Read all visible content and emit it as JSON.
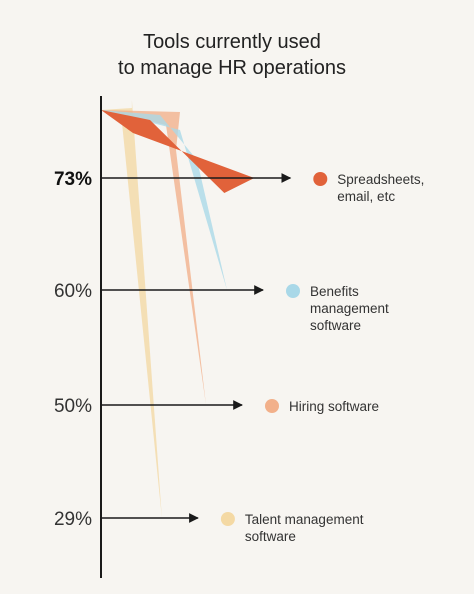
{
  "chart_data": {
    "type": "area",
    "title": "Tools currently used to manage HR operations",
    "title_lines": [
      "Tools currently used",
      "to manage HR operations"
    ],
    "series": [
      {
        "name": "Spreadsheets, email, etc",
        "legend_lines": [
          "Spreadsheets,",
          "email, etc"
        ],
        "value": 73,
        "label": "73%",
        "color": "#e1623a",
        "highlight": true
      },
      {
        "name": "Benefits management software",
        "legend_lines": [
          "Benefits",
          "management",
          "software"
        ],
        "value": 60,
        "label": "60%",
        "color": "#a9d8e8",
        "highlight": false
      },
      {
        "name": "Hiring software",
        "legend_lines": [
          "Hiring software"
        ],
        "value": 50,
        "label": "50%",
        "color": "#f2b08a",
        "highlight": false
      },
      {
        "name": "Talent management software",
        "legend_lines": [
          "Talent management",
          "software"
        ],
        "value": 29,
        "label": "29%",
        "color": "#f4d9a4",
        "highlight": false
      }
    ],
    "legend_position": "right",
    "grid": false
  }
}
